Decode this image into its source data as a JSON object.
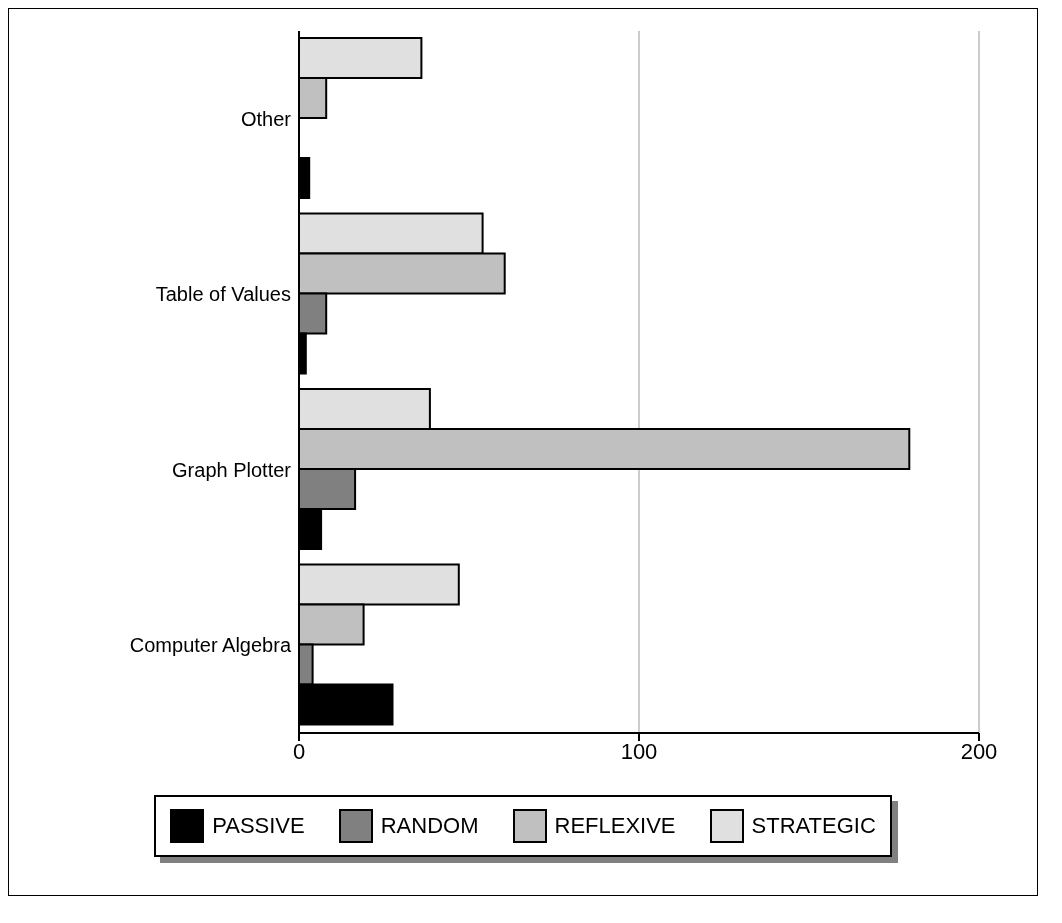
{
  "chart_data": {
    "type": "bar",
    "orientation": "horizontal",
    "categories": [
      "Other",
      "Table of Values",
      "Graph Plotter",
      "Computer Algebra"
    ],
    "series": [
      {
        "name": "PASSIVE",
        "color": "#000000",
        "values": [
          3,
          2,
          6.5,
          27.5
        ]
      },
      {
        "name": "RANDOM",
        "color": "#808080",
        "values": [
          0,
          8,
          16.5,
          4
        ]
      },
      {
        "name": "REFLEXIVE",
        "color": "#c0c0c0",
        "values": [
          8,
          60.5,
          179.5,
          19
        ]
      },
      {
        "name": "STRATEGIC",
        "color": "#e0e0e0",
        "values": [
          36,
          54,
          38.5,
          47
        ]
      }
    ],
    "xlim": [
      0,
      200
    ],
    "xticks": [
      0,
      100,
      200
    ],
    "grid": "x",
    "legend": "bottom"
  }
}
